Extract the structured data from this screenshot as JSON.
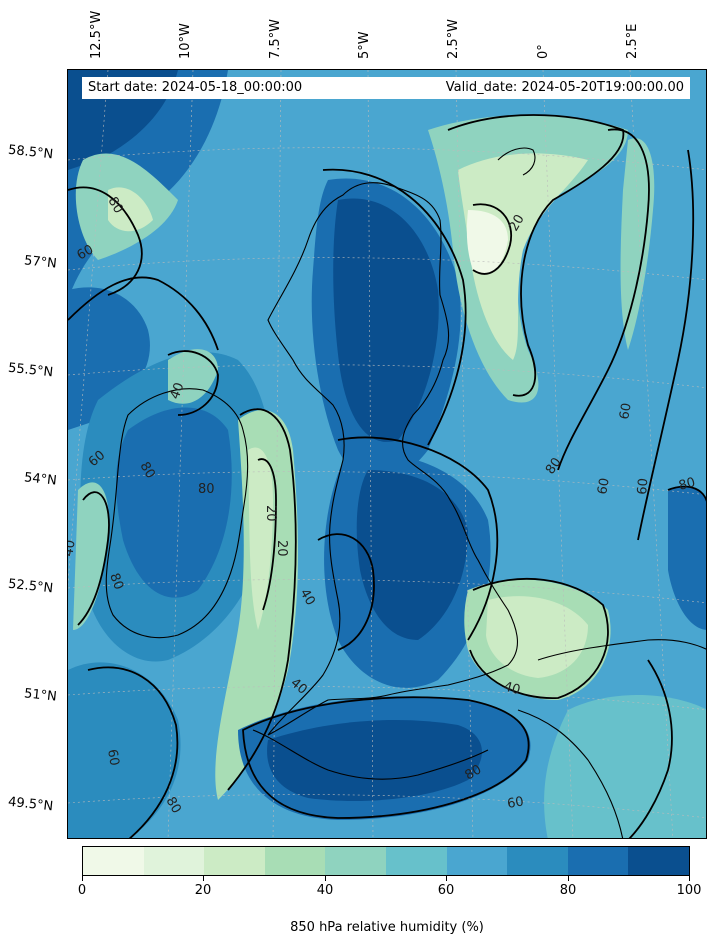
{
  "header": {
    "start_date": "Start date: 2024-05-18_00:00:00",
    "valid_date": "Valid_date: 2024-05-20T19:00:00.00"
  },
  "longitude_labels": [
    "12.5°W",
    "10°W",
    "7.5°W",
    "5°W",
    "2.5°W",
    "0°",
    "2.5°E"
  ],
  "latitude_labels": [
    "58.5°N",
    "57°N",
    "55.5°N",
    "54°N",
    "52.5°N",
    "51°N",
    "49.5°N"
  ],
  "colorbar": {
    "title": "850 hPa relative humidity (%)",
    "ticks": [
      "0",
      "20",
      "40",
      "60",
      "80",
      "100"
    ],
    "colors": [
      "#f0f9e8",
      "#e0f3db",
      "#ccebc5",
      "#a8ddb5",
      "#8fd3bf",
      "#67c1cb",
      "#4aa6d0",
      "#2b8cbe",
      "#1a6eb0",
      "#0a4f8f"
    ]
  },
  "contour_labels": [
    "20",
    "20",
    "20",
    "40",
    "40",
    "40",
    "40",
    "40",
    "60",
    "60",
    "60",
    "60",
    "60",
    "60",
    "60",
    "80",
    "80",
    "80",
    "80",
    "80",
    "80",
    "80",
    "80"
  ]
}
